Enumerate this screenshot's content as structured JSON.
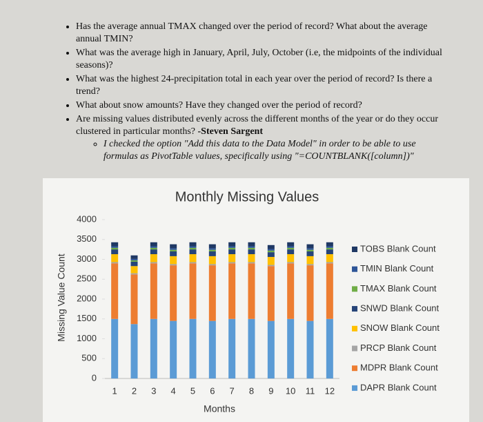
{
  "document": {
    "bullets": [
      "Has the average annual TMAX changed over the period of record? What about the average annual TMIN?",
      "What was the average high in January, April, July, October (i.e, the midpoints of the individual seasons)?",
      "What was the highest 24-precipitation total in each year over the period of record? Is there a trend?",
      "What about snow amounts? Have they changed over the period of record?",
      "Are missing values distributed evenly across the different months of the year or do they occur clustered in particular months?"
    ],
    "bullet_author": "-Steven Sargent",
    "sub_bullet": "I checked the option \"Add this data to the Data Model\" in order to be able to use formulas as PivotTable values, specifically using \"=COUNTBLANK([column])\""
  },
  "chart_data": {
    "type": "stacked-bar",
    "title": "Monthly Missing Values",
    "x_label": "Months",
    "y_label": "Missing Value Count",
    "categories": [
      "1",
      "2",
      "3",
      "4",
      "5",
      "6",
      "7",
      "8",
      "9",
      "10",
      "11",
      "12"
    ],
    "ylim": [
      0,
      4000
    ],
    "yticks": [
      0,
      500,
      1000,
      1500,
      2000,
      2500,
      3000,
      3500,
      4000
    ],
    "grid": false,
    "legend": "right",
    "series": [
      {
        "name": "TOBS Blank Count",
        "color": "#1f3864",
        "values": [
          100,
          90,
          100,
          100,
          100,
          100,
          100,
          100,
          100,
          100,
          100,
          100
        ]
      },
      {
        "name": "TMIN Blank Count",
        "color": "#2e5597",
        "values": [
          40,
          35,
          40,
          40,
          40,
          40,
          40,
          40,
          40,
          40,
          40,
          40
        ]
      },
      {
        "name": "TMAX Blank Count",
        "color": "#70ad47",
        "values": [
          40,
          35,
          40,
          40,
          40,
          40,
          40,
          40,
          40,
          40,
          40,
          40
        ]
      },
      {
        "name": "SNWD Blank Count",
        "color": "#264478",
        "values": [
          120,
          110,
          120,
          120,
          120,
          120,
          120,
          120,
          120,
          120,
          120,
          120
        ]
      },
      {
        "name": "SNOW Blank Count",
        "color": "#ffc000",
        "values": [
          200,
          180,
          200,
          200,
          200,
          200,
          200,
          200,
          200,
          200,
          200,
          200
        ]
      },
      {
        "name": "PRCP Blank Count",
        "color": "#a5a5a5",
        "values": [
          30,
          30,
          30,
          30,
          30,
          30,
          30,
          30,
          30,
          30,
          30,
          30
        ]
      },
      {
        "name": "MDPR Blank Count",
        "color": "#ed7d31",
        "values": [
          1400,
          1250,
          1400,
          1400,
          1400,
          1400,
          1400,
          1400,
          1380,
          1400,
          1400,
          1400
        ]
      },
      {
        "name": "DAPR Blank Count",
        "color": "#5b9bd5",
        "values": [
          1500,
          1370,
          1500,
          1450,
          1500,
          1450,
          1500,
          1500,
          1450,
          1500,
          1450,
          1500
        ]
      }
    ]
  }
}
